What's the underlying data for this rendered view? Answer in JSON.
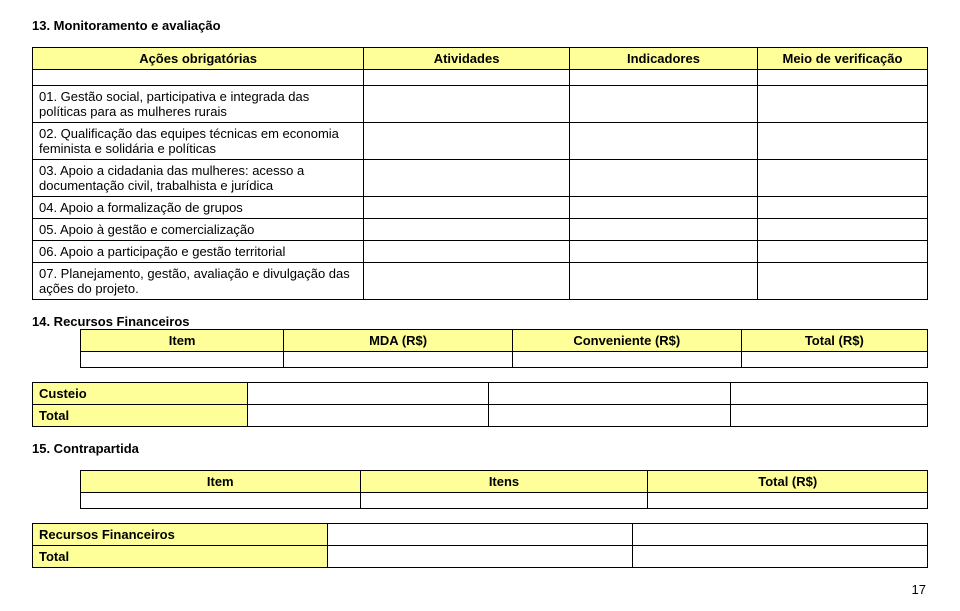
{
  "section13": {
    "title": "13. Monitoramento e avaliação",
    "headers": {
      "c1": "Ações obrigatórias",
      "c2": "Atividades",
      "c3": "Indicadores",
      "c4": "Meio de verificação"
    },
    "rows": [
      "01. Gestão social, participativa e integrada das políticas para as mulheres rurais",
      "02. Qualificação das equipes técnicas em economia feminista e solidária e políticas",
      "03. Apoio a cidadania das mulheres: acesso a documentação civil, trabalhista e jurídica",
      "04. Apoio a formalização de grupos",
      "05. Apoio à gestão e comercialização",
      "06. Apoio a participação e gestão territorial",
      "07. Planejamento, gestão, avaliação e divulgação das ações do projeto."
    ]
  },
  "section14": {
    "title": "14. Recursos Financeiros",
    "headers": {
      "c1": "Item",
      "c2": "MDA (R$)",
      "c3": "Conveniente (R$)",
      "c4": "Total (R$)"
    },
    "rows": [
      "Custeio",
      "Total"
    ]
  },
  "section15": {
    "title": "15. Contrapartida",
    "headers": {
      "c1": "Item",
      "c2": "Itens",
      "c3": "Total (R$)"
    },
    "rows": [
      "Recursos Financeiros",
      "Total"
    ]
  },
  "pageNumber": "17"
}
